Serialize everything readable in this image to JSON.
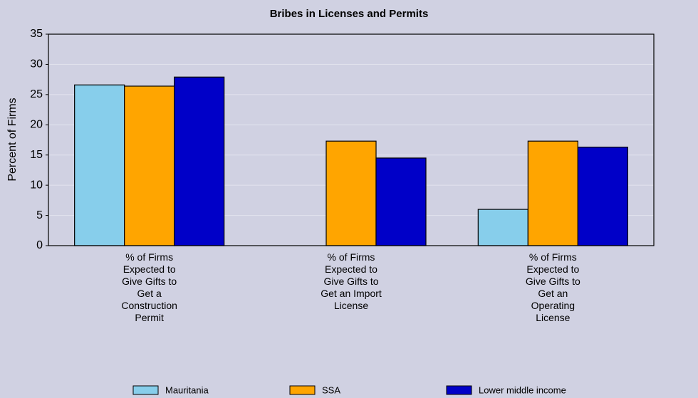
{
  "chart_data": {
    "type": "bar",
    "title": "Bribes in Licenses and Permits",
    "y_label": "Percent of Firms",
    "categories": [
      "% of Firms Expected to Give Gifts to Get a Construction Permit",
      "% of Firms Expected to Give Gifts to Get an Import License",
      "% of Firms Expected to Give Gifts to Get an Operating License"
    ],
    "series": [
      {
        "name": "Mauritania",
        "color": "#87ceeb",
        "values": [
          26.6,
          null,
          6.0
        ]
      },
      {
        "name": "SSA",
        "color": "#ffa500",
        "values": [
          26.4,
          17.3,
          17.3
        ]
      },
      {
        "name": "Lower middle income",
        "color": "#0000c8",
        "values": [
          27.9,
          14.5,
          16.3
        ]
      }
    ],
    "ylim": [
      0,
      35
    ],
    "yticks": [
      0,
      5,
      10,
      15,
      20,
      25,
      30,
      35
    ],
    "grid": true
  }
}
